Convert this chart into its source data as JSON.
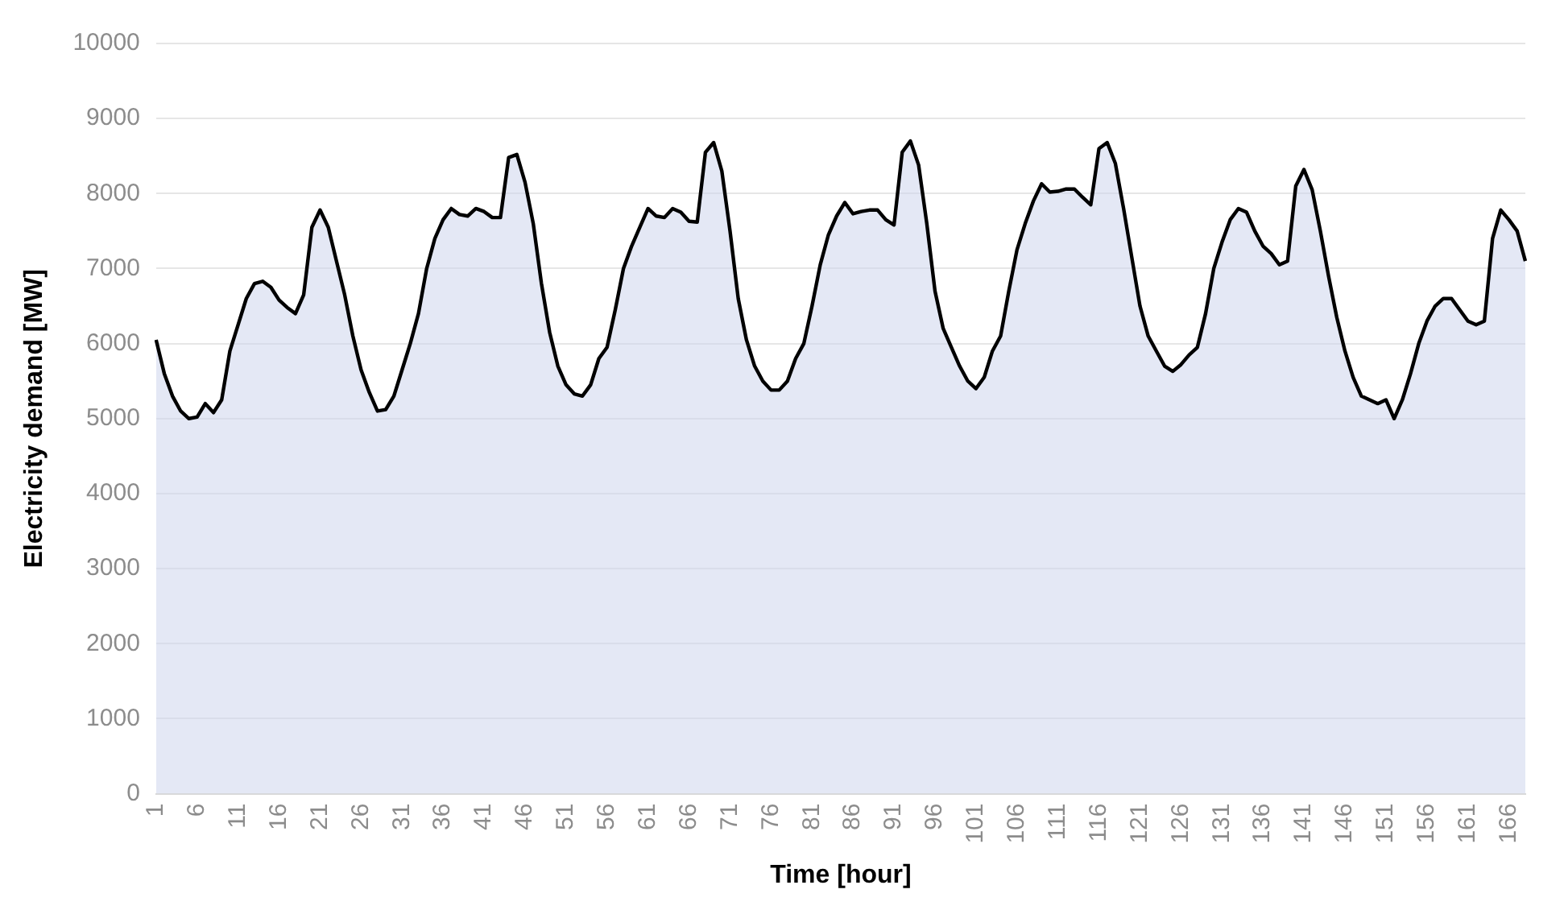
{
  "chart_data": {
    "type": "area",
    "xlabel": "Time [hour]",
    "ylabel": "Electricity demand [MW]",
    "categories": [
      "1",
      null,
      null,
      null,
      null,
      "6",
      null,
      null,
      null,
      null,
      "11",
      null,
      null,
      null,
      null,
      "16",
      null,
      null,
      null,
      null,
      "21",
      null,
      null,
      null,
      null,
      "26",
      null,
      null,
      null,
      null,
      "31",
      null,
      null,
      null,
      null,
      "36",
      null,
      null,
      null,
      null,
      "41",
      null,
      null,
      null,
      null,
      "46",
      null,
      null,
      null,
      null,
      "51",
      null,
      null,
      null,
      null,
      "56",
      null,
      null,
      null,
      null,
      "61",
      null,
      null,
      null,
      null,
      "66",
      null,
      null,
      null,
      null,
      "71",
      null,
      null,
      null,
      null,
      "76",
      null,
      null,
      null,
      null,
      "81",
      null,
      null,
      null,
      null,
      "86",
      null,
      null,
      null,
      null,
      "91",
      null,
      null,
      null,
      null,
      "96",
      null,
      null,
      null,
      null,
      "101",
      null,
      null,
      null,
      null,
      "106",
      null,
      null,
      null,
      null,
      "111",
      null,
      null,
      null,
      null,
      "116",
      null,
      null,
      null,
      null,
      "121",
      null,
      null,
      null,
      null,
      "126",
      null,
      null,
      null,
      null,
      "131",
      null,
      null,
      null,
      null,
      "136",
      null,
      null,
      null,
      null,
      "141",
      null,
      null,
      null,
      null,
      "146",
      null,
      null,
      null,
      null,
      "151",
      null,
      null,
      null,
      null,
      "156",
      null,
      null,
      null,
      null,
      "161",
      null,
      null,
      null,
      null,
      "166",
      null,
      null
    ],
    "series": [
      {
        "color": "#000000",
        "values": [
          6050,
          5600,
          5300,
          5100,
          5000,
          5020,
          5200,
          5080,
          5250,
          5900,
          6250,
          6600,
          6800,
          6830,
          6750,
          6580,
          6480,
          6400,
          6650,
          7550,
          7780,
          7550,
          7100,
          6650,
          6100,
          5650,
          5350,
          5100,
          5120,
          5300,
          5650,
          6000,
          6400,
          7000,
          7400,
          7650,
          7800,
          7720,
          7700,
          7800,
          7760,
          7680,
          7680,
          8480,
          8520,
          8150,
          7600,
          6800,
          6150,
          5700,
          5450,
          5330,
          5300,
          5450,
          5800,
          5950,
          6450,
          7000,
          7300,
          7550,
          7800,
          7700,
          7680,
          7800,
          7750,
          7630,
          7620,
          8550,
          8680,
          8300,
          7500,
          6600,
          6050,
          5700,
          5500,
          5380,
          5380,
          5500,
          5800,
          6000,
          6500,
          7050,
          7450,
          7700,
          7880,
          7730,
          7760,
          7780,
          7780,
          7650,
          7580,
          8550,
          8700,
          8380,
          7600,
          6700,
          6200,
          5950,
          5700,
          5500,
          5400,
          5550,
          5900,
          6100,
          6700,
          7250,
          7600,
          7900,
          8130,
          8020,
          8030,
          8060,
          8060,
          7950,
          7850,
          8600,
          8680,
          8400,
          7800,
          7150,
          6500,
          6100,
          5900,
          5700,
          5630,
          5720,
          5850,
          5950,
          6400,
          7000,
          7350,
          7650,
          7800,
          7750,
          7500,
          7300,
          7200,
          7050,
          7100,
          8100,
          8320,
          8050,
          7500,
          6900,
          6350,
          5900,
          5550,
          5300,
          5250,
          5200,
          5250,
          5000,
          5250,
          5600,
          6000,
          6300,
          6500,
          6600,
          6600,
          6450,
          6300,
          6250,
          6300,
          7400,
          7780,
          7650,
          7500,
          7100
        ]
      }
    ],
    "ylim": [
      0,
      10000
    ],
    "yticks": [
      0,
      1000,
      2000,
      3000,
      4000,
      5000,
      6000,
      7000,
      8000,
      9000,
      10000
    ],
    "grid": "y"
  }
}
